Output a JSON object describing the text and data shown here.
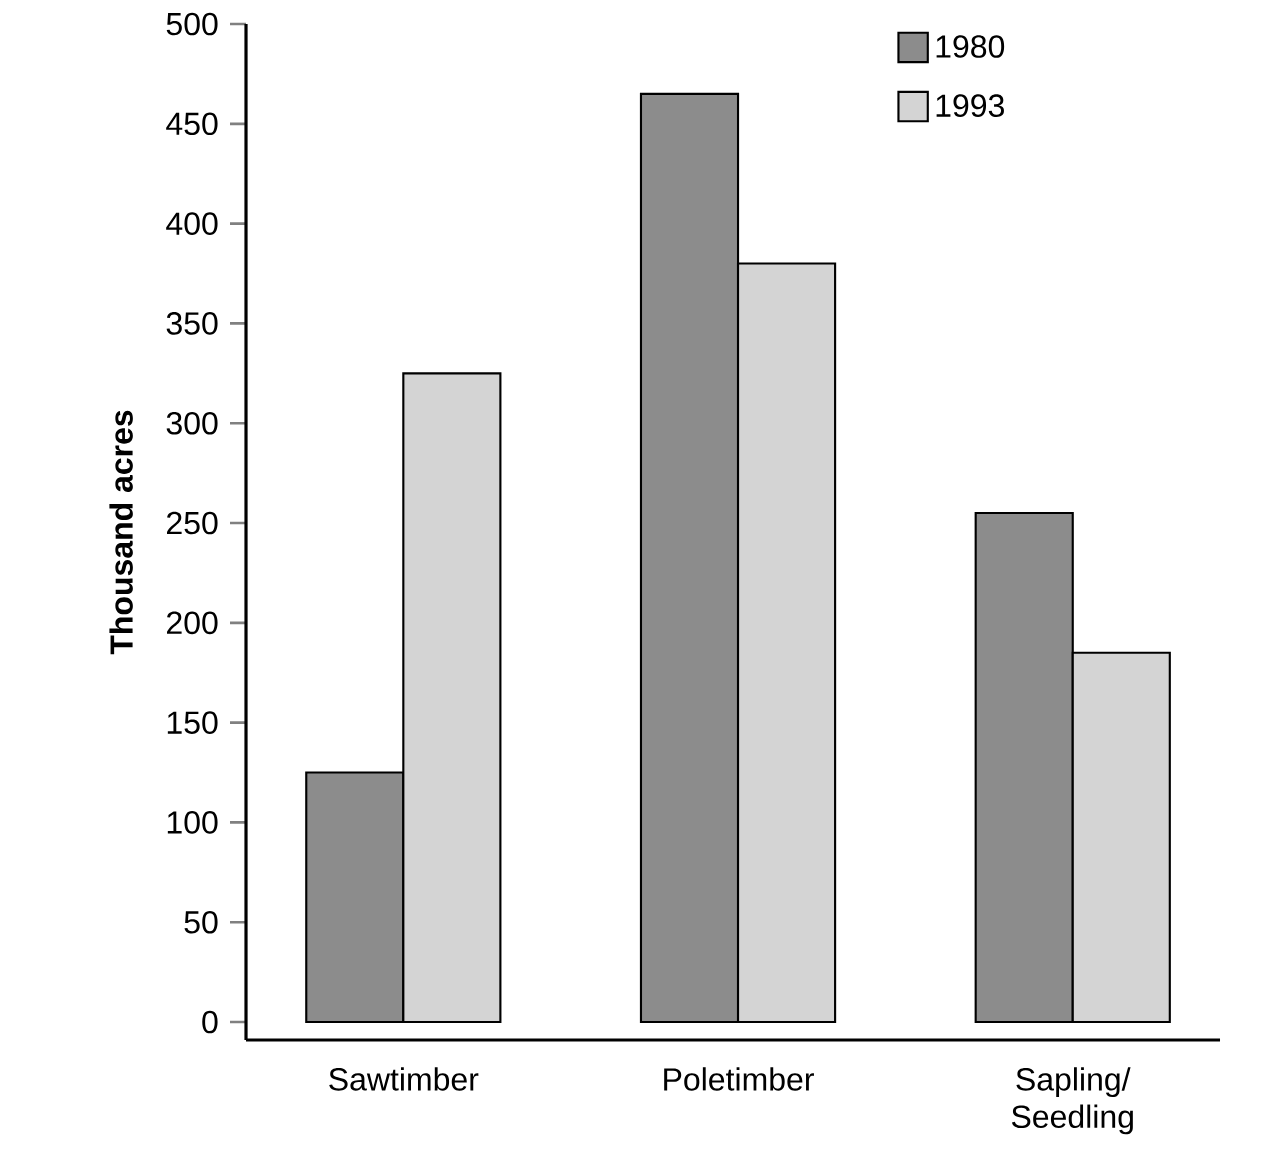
{
  "chart_data": {
    "type": "bar",
    "ylabel": "Thousand acres",
    "categories": [
      "Sawtimber",
      "Poletimber",
      "Sapling/ Seedling"
    ],
    "series": [
      {
        "name": "1980",
        "color": "#8c8c8c",
        "values": [
          125,
          465,
          255
        ]
      },
      {
        "name": "1993",
        "color": "#d4d4d4",
        "values": [
          325,
          380,
          185
        ]
      }
    ],
    "ylim": [
      -9,
      500
    ],
    "yticks": [
      0,
      50,
      100,
      150,
      200,
      250,
      300,
      350,
      400,
      450,
      500
    ],
    "legend": "top right",
    "grid": false
  }
}
